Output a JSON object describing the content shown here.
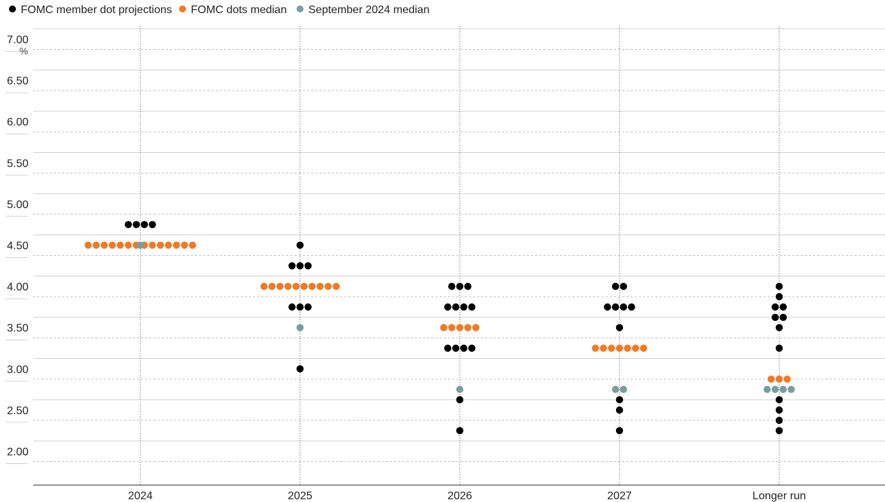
{
  "chart_data": {
    "type": "scatter",
    "title": "",
    "xlabel": "",
    "ylabel": "",
    "y_unit_label": "%",
    "ylim": [
      2.0,
      7.0
    ],
    "y_ticks": [
      "2.00",
      "2.50",
      "3.00",
      "3.50",
      "4.00",
      "4.50",
      "5.00",
      "5.50",
      "6.00",
      "6.50",
      "7.00"
    ],
    "categories": [
      "2024",
      "2025",
      "2026",
      "2027",
      "Longer run"
    ],
    "grid": true,
    "legend_position": "top-left",
    "series": [
      {
        "name": "FOMC member dot projections",
        "color": "#000000",
        "points": [
          {
            "x": "2024",
            "y": 4.875,
            "count": 4
          },
          {
            "x": "2025",
            "y": 4.625,
            "count": 1
          },
          {
            "x": "2025",
            "y": 4.375,
            "count": 3
          },
          {
            "x": "2025",
            "y": 3.875,
            "count": 3
          },
          {
            "x": "2025",
            "y": 3.125,
            "count": 1
          },
          {
            "x": "2026",
            "y": 4.125,
            "count": 3
          },
          {
            "x": "2026",
            "y": 3.875,
            "count": 4
          },
          {
            "x": "2026",
            "y": 3.375,
            "count": 4
          },
          {
            "x": "2026",
            "y": 2.75,
            "count": 1
          },
          {
            "x": "2026",
            "y": 2.375,
            "count": 1
          },
          {
            "x": "2027",
            "y": 4.125,
            "count": 2
          },
          {
            "x": "2027",
            "y": 3.875,
            "count": 4
          },
          {
            "x": "2027",
            "y": 3.625,
            "count": 1
          },
          {
            "x": "2027",
            "y": 2.75,
            "count": 1
          },
          {
            "x": "2027",
            "y": 2.625,
            "count": 1
          },
          {
            "x": "2027",
            "y": 2.375,
            "count": 1
          },
          {
            "x": "Longer run",
            "y": 4.125,
            "count": 1
          },
          {
            "x": "Longer run",
            "y": 4.0,
            "count": 1
          },
          {
            "x": "Longer run",
            "y": 3.875,
            "count": 2
          },
          {
            "x": "Longer run",
            "y": 3.75,
            "count": 2
          },
          {
            "x": "Longer run",
            "y": 3.625,
            "count": 1
          },
          {
            "x": "Longer run",
            "y": 3.375,
            "count": 1
          },
          {
            "x": "Longer run",
            "y": 2.75,
            "count": 1
          },
          {
            "x": "Longer run",
            "y": 2.625,
            "count": 1
          },
          {
            "x": "Longer run",
            "y": 2.5,
            "count": 1
          },
          {
            "x": "Longer run",
            "y": 2.375,
            "count": 1
          }
        ]
      },
      {
        "name": "FOMC dots median",
        "color": "#F07A24",
        "points": [
          {
            "x": "2024",
            "y": 4.625,
            "count": 14
          },
          {
            "x": "2025",
            "y": 4.125,
            "count": 10
          },
          {
            "x": "2026",
            "y": 3.625,
            "count": 5
          },
          {
            "x": "2027",
            "y": 3.375,
            "count": 7
          },
          {
            "x": "Longer run",
            "y": 3.0,
            "count": 3
          }
        ]
      },
      {
        "name": "September 2024 median",
        "color": "#7A9E9F",
        "points": [
          {
            "x": "2024",
            "y": 4.625,
            "count": 1
          },
          {
            "x": "2025",
            "y": 3.625,
            "count": 1
          },
          {
            "x": "2026",
            "y": 2.875,
            "count": 1
          },
          {
            "x": "2027",
            "y": 2.875,
            "count": 2
          },
          {
            "x": "Longer run",
            "y": 2.875,
            "count": 4
          }
        ]
      }
    ]
  }
}
